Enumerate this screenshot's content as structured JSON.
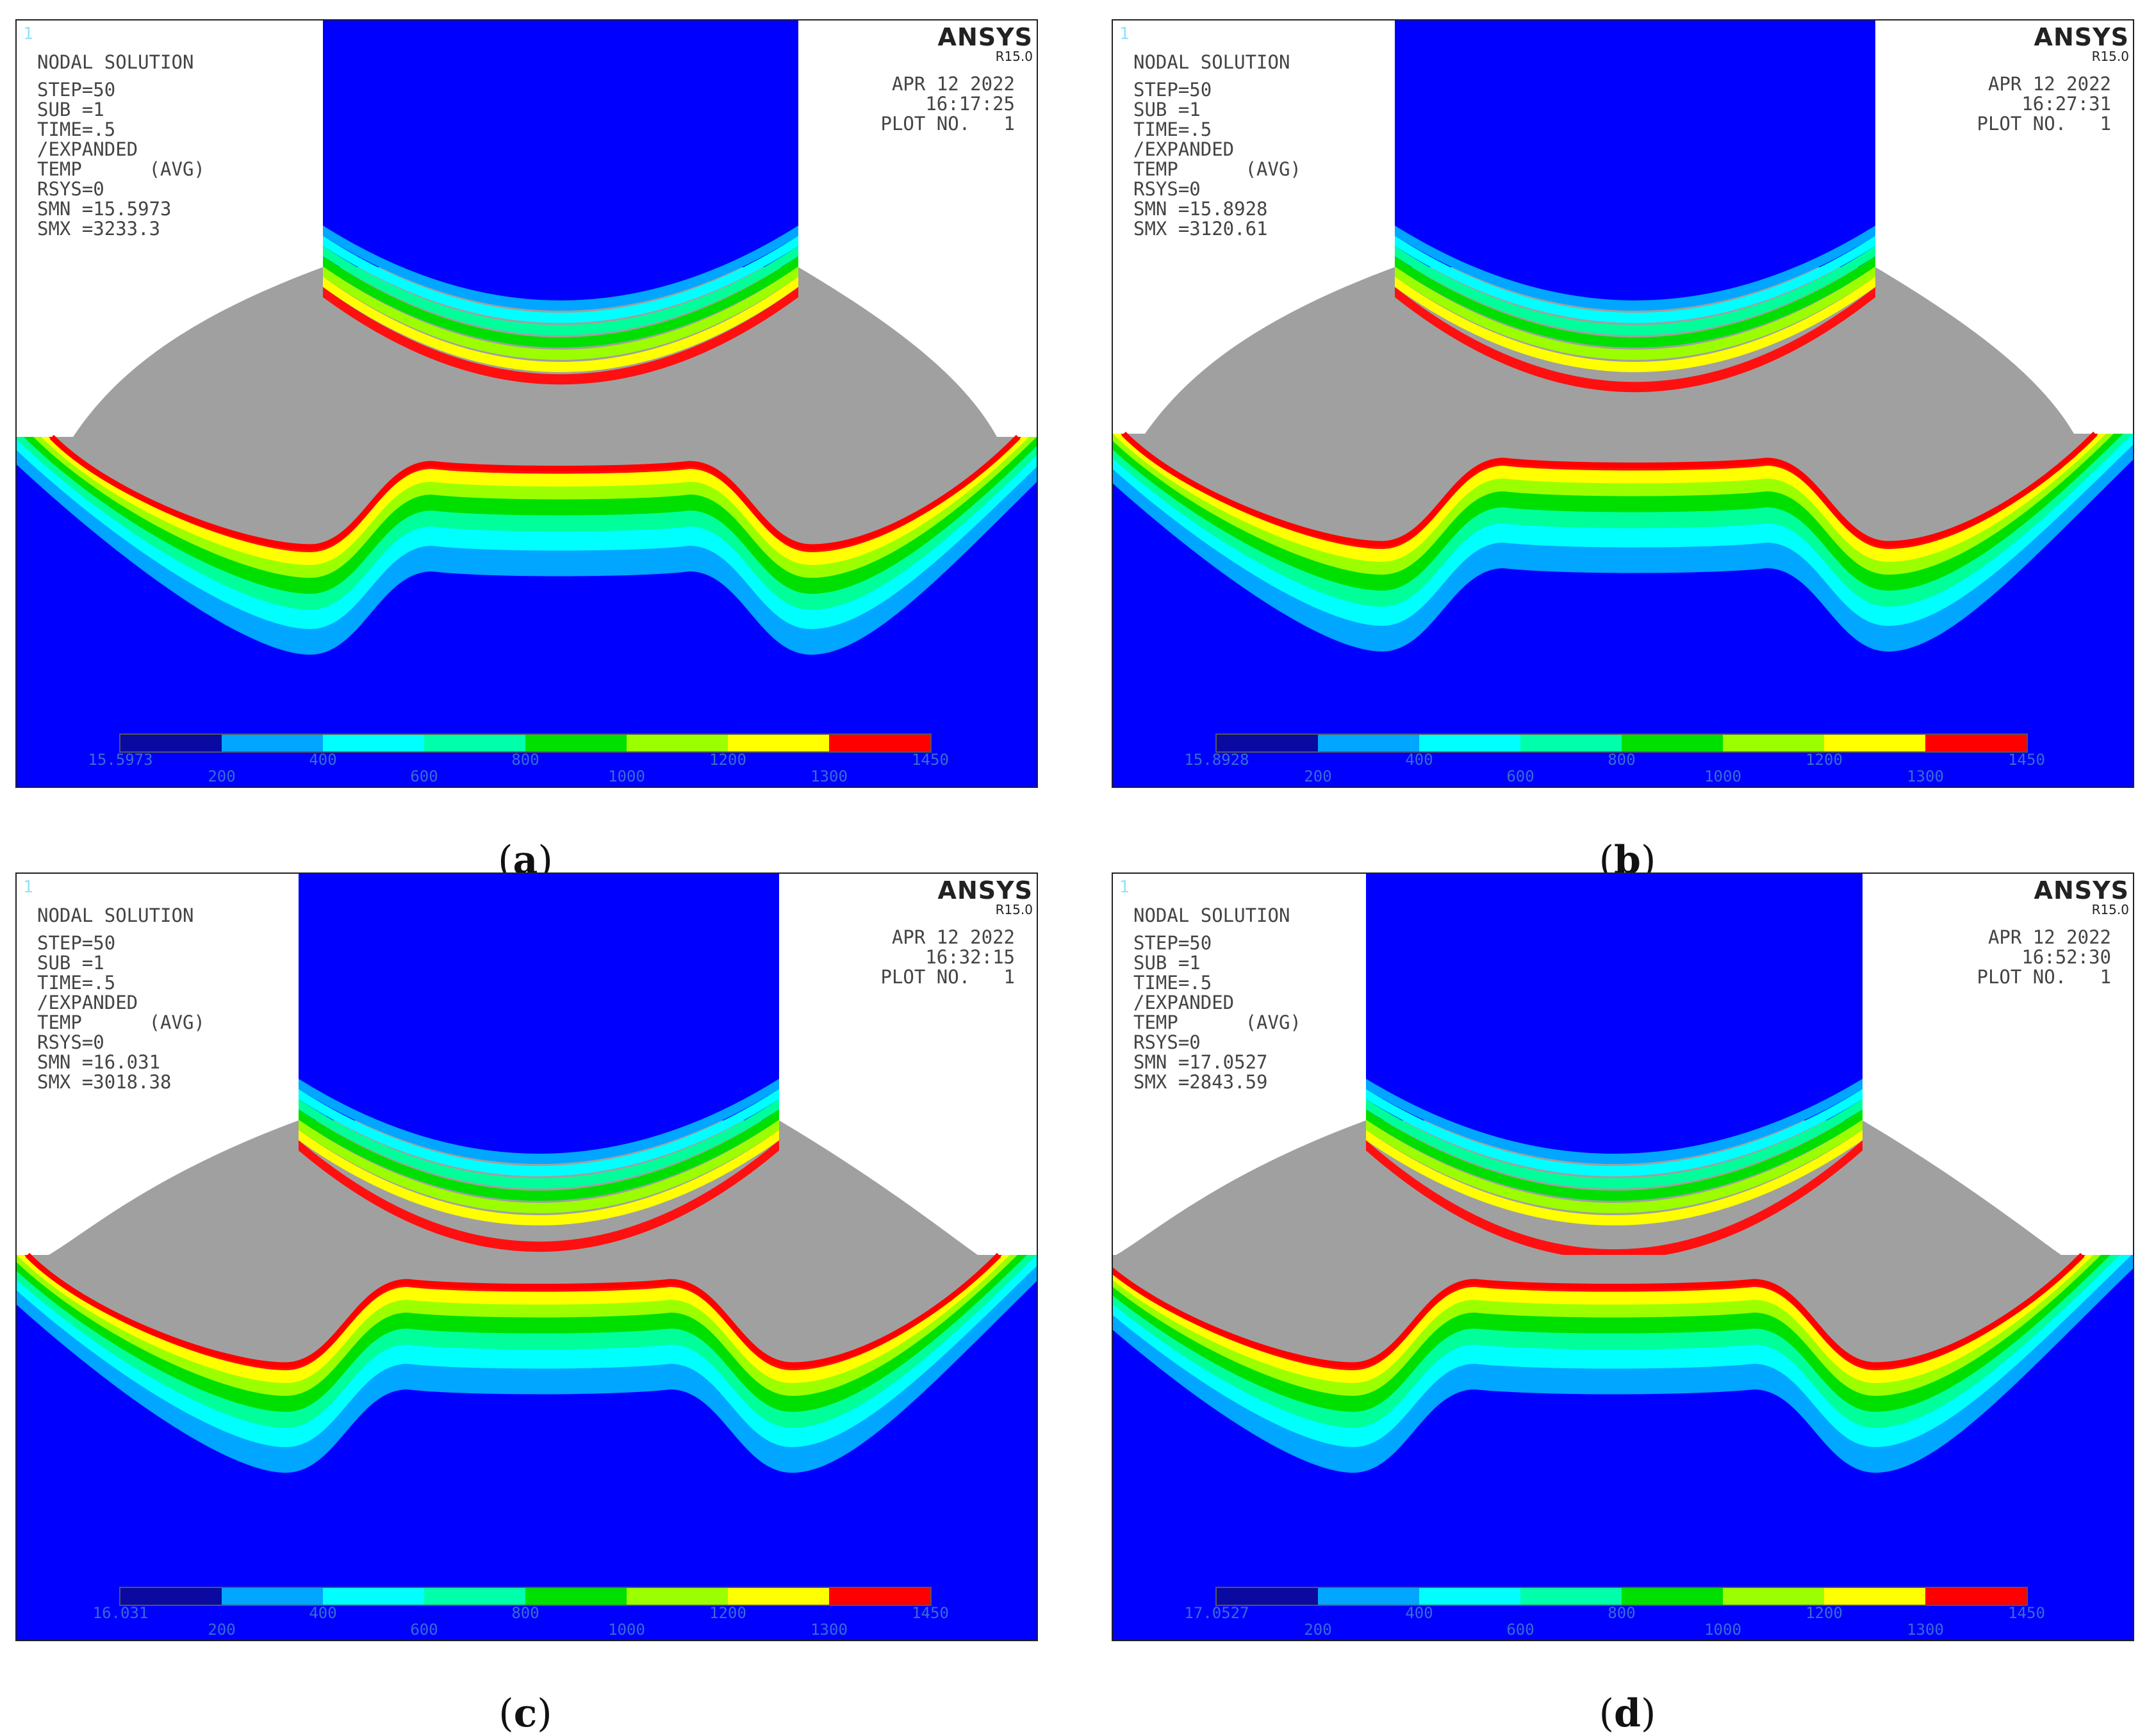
{
  "colors": {
    "background_blue": "#0000ff",
    "gray": "#a0a0a0",
    "band_colors": [
      "#00a6ff",
      "#00ffff",
      "#00ff9a",
      "#00e000",
      "#9cff00",
      "#ffff00",
      "#ff1010"
    ],
    "legend_colors": [
      "#0a0aa0",
      "#00a6ff",
      "#00ffff",
      "#00ffaa",
      "#00e000",
      "#9cff00",
      "#ffff00",
      "#ff0000"
    ]
  },
  "common": {
    "frame_number": "1",
    "brand": "ANSYS",
    "version": "R15.0",
    "info_lines": [
      "NODAL SOLUTION",
      "",
      "STEP=50",
      "SUB =1",
      "TIME=.5",
      "/EXPANDED",
      "TEMP      (AVG)",
      "RSYS=0"
    ],
    "date": "APR 12 2022",
    "plot_no": "PLOT NO.   1",
    "legend_upper_ticks": [
      "400",
      "800",
      "1200"
    ],
    "legend_lower_ticks": [
      "200",
      "600",
      "1000",
      "1300"
    ],
    "legend_max": "1450"
  },
  "panels": [
    {
      "caption": "a",
      "time": "16:17:25",
      "smn": "SMN =15.5973",
      "smx": "SMX =3233.3",
      "legend_min": "15.5973"
    },
    {
      "caption": "b",
      "time": "16:27:31",
      "smn": "SMN =15.8928",
      "smx": "SMX =3120.61",
      "legend_min": "15.8928"
    },
    {
      "caption": "c",
      "time": "16:32:15",
      "smn": "SMN =16.031",
      "smx": "SMX =3018.38",
      "legend_min": "16.031"
    },
    {
      "caption": "d",
      "time": "16:52:30",
      "smn": "SMN =17.0527",
      "smx": "SMX =2843.59",
      "legend_min": "17.0527"
    }
  ]
}
